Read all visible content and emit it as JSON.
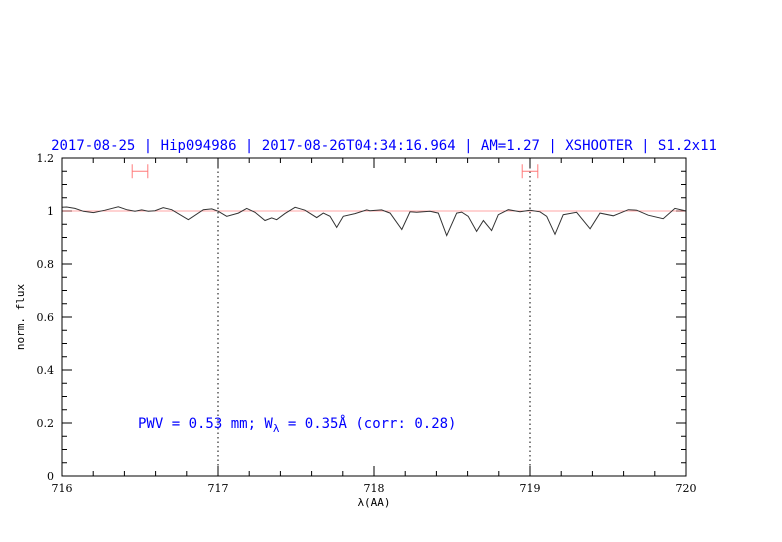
{
  "chart_data": {
    "type": "line",
    "title": "2017-08-25 | Hip094986 | 2017-08-26T04:34:16.964 | AM=1.27 | XSHOOTER | S1.2x11",
    "xlabel": "λ(AA)",
    "ylabel": "norm. flux",
    "xlim": [
      716,
      720
    ],
    "ylim": [
      0,
      1.2
    ],
    "xticks": [
      "716",
      "717",
      "718",
      "719",
      "720"
    ],
    "yticks": [
      "0",
      "0.2",
      "0.4",
      "0.6",
      "0.8",
      "1",
      "1.2"
    ],
    "grid": false,
    "reference_line": {
      "y": 1.0,
      "color": "#ff6a6a"
    },
    "vertical_markers": [
      717,
      719
    ],
    "error_bars": [
      {
        "x_from": 716.45,
        "x_to": 716.55,
        "y": 1.15,
        "color": "#ff7b7b"
      },
      {
        "x_from": 718.95,
        "x_to": 719.05,
        "y": 1.15,
        "color": "#ff7b7b"
      }
    ],
    "annotation": {
      "pre": "PWV = 0.53 mm; W",
      "sub": "λ",
      "post": " = 0.35Å (corr: 0.28)"
    },
    "series": [
      {
        "color": "#333333",
        "x": [
          716.0,
          716.03,
          716.083,
          716.137,
          716.201,
          716.276,
          716.361,
          716.415,
          716.468,
          716.511,
          716.553,
          716.596,
          716.649,
          716.703,
          716.81,
          716.906,
          716.96,
          717.002,
          717.056,
          717.13,
          717.184,
          717.237,
          717.301,
          717.344,
          717.376,
          717.429,
          717.494,
          717.558,
          717.633,
          717.675,
          717.718,
          717.761,
          717.803,
          717.878,
          717.953,
          717.974,
          718.049,
          718.103,
          718.178,
          718.231,
          718.274,
          718.359,
          718.412,
          718.466,
          718.53,
          718.562,
          718.604,
          718.658,
          718.701,
          718.754,
          718.797,
          718.861,
          718.936,
          719.0,
          719.064,
          719.107,
          719.16,
          719.213,
          719.299,
          719.385,
          719.449,
          719.534,
          719.63,
          719.684,
          719.758,
          719.854,
          719.929,
          719.994,
          720.0
        ],
        "y": [
          1.014,
          1.015,
          1.01,
          0.999,
          0.994,
          1.003,
          1.016,
          1.005,
          0.999,
          1.004,
          0.999,
          1.001,
          1.013,
          1.005,
          0.967,
          1.005,
          1.008,
          0.999,
          0.98,
          0.992,
          1.01,
          0.995,
          0.964,
          0.974,
          0.967,
          0.99,
          1.014,
          1.003,
          0.975,
          0.992,
          0.98,
          0.938,
          0.98,
          0.99,
          1.004,
          1.001,
          1.004,
          0.992,
          0.93,
          0.997,
          0.995,
          0.999,
          0.992,
          0.907,
          0.992,
          0.996,
          0.98,
          0.923,
          0.964,
          0.926,
          0.986,
          1.005,
          0.997,
          1.003,
          0.997,
          0.98,
          0.912,
          0.986,
          0.995,
          0.933,
          0.992,
          0.982,
          1.005,
          1.003,
          0.984,
          0.971,
          1.01,
          1.001,
          1.001
        ]
      }
    ]
  }
}
